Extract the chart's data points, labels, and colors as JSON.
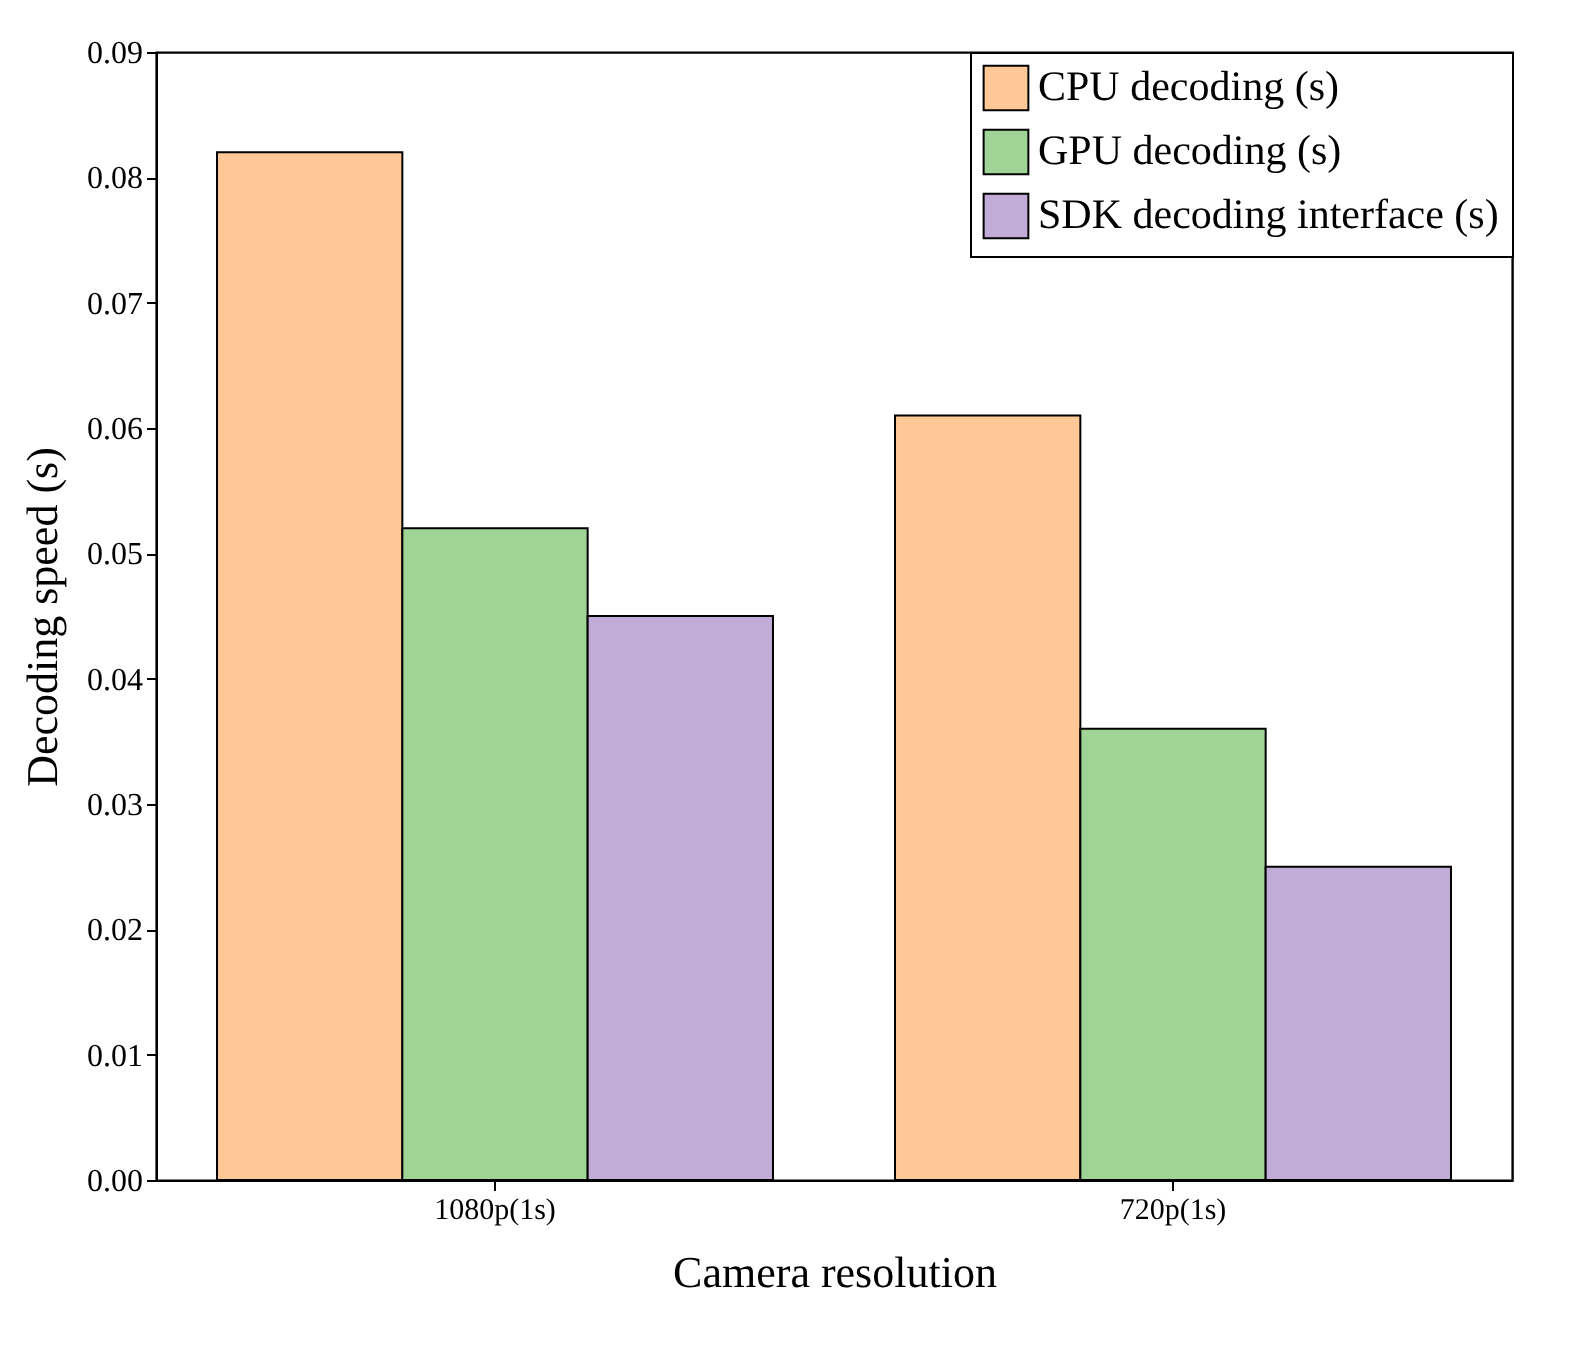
{
  "chart_data": {
    "type": "bar",
    "xlabel": "Camera resolution",
    "ylabel": "Decoding speed (s)",
    "categories": [
      "1080p(1s)",
      "720p(1s)"
    ],
    "series": [
      {
        "name": "CPU decoding (s)",
        "color": "#ffc896",
        "values": [
          0.082,
          0.061
        ]
      },
      {
        "name": "GPU decoding (s)",
        "color": "#a0d496",
        "values": [
          0.052,
          0.036
        ]
      },
      {
        "name": "SDK decoding interface (s)",
        "color": "#c0acd6",
        "values": [
          0.045,
          0.025
        ]
      }
    ],
    "ylim": [
      0,
      0.09
    ],
    "yticks": [
      {
        "value": 0,
        "label": "0.00"
      },
      0.01,
      0.02,
      0.03,
      0.04,
      0.05,
      0.06,
      0.07,
      0.08,
      0.09
    ],
    "legend": "top right",
    "grid": false
  }
}
